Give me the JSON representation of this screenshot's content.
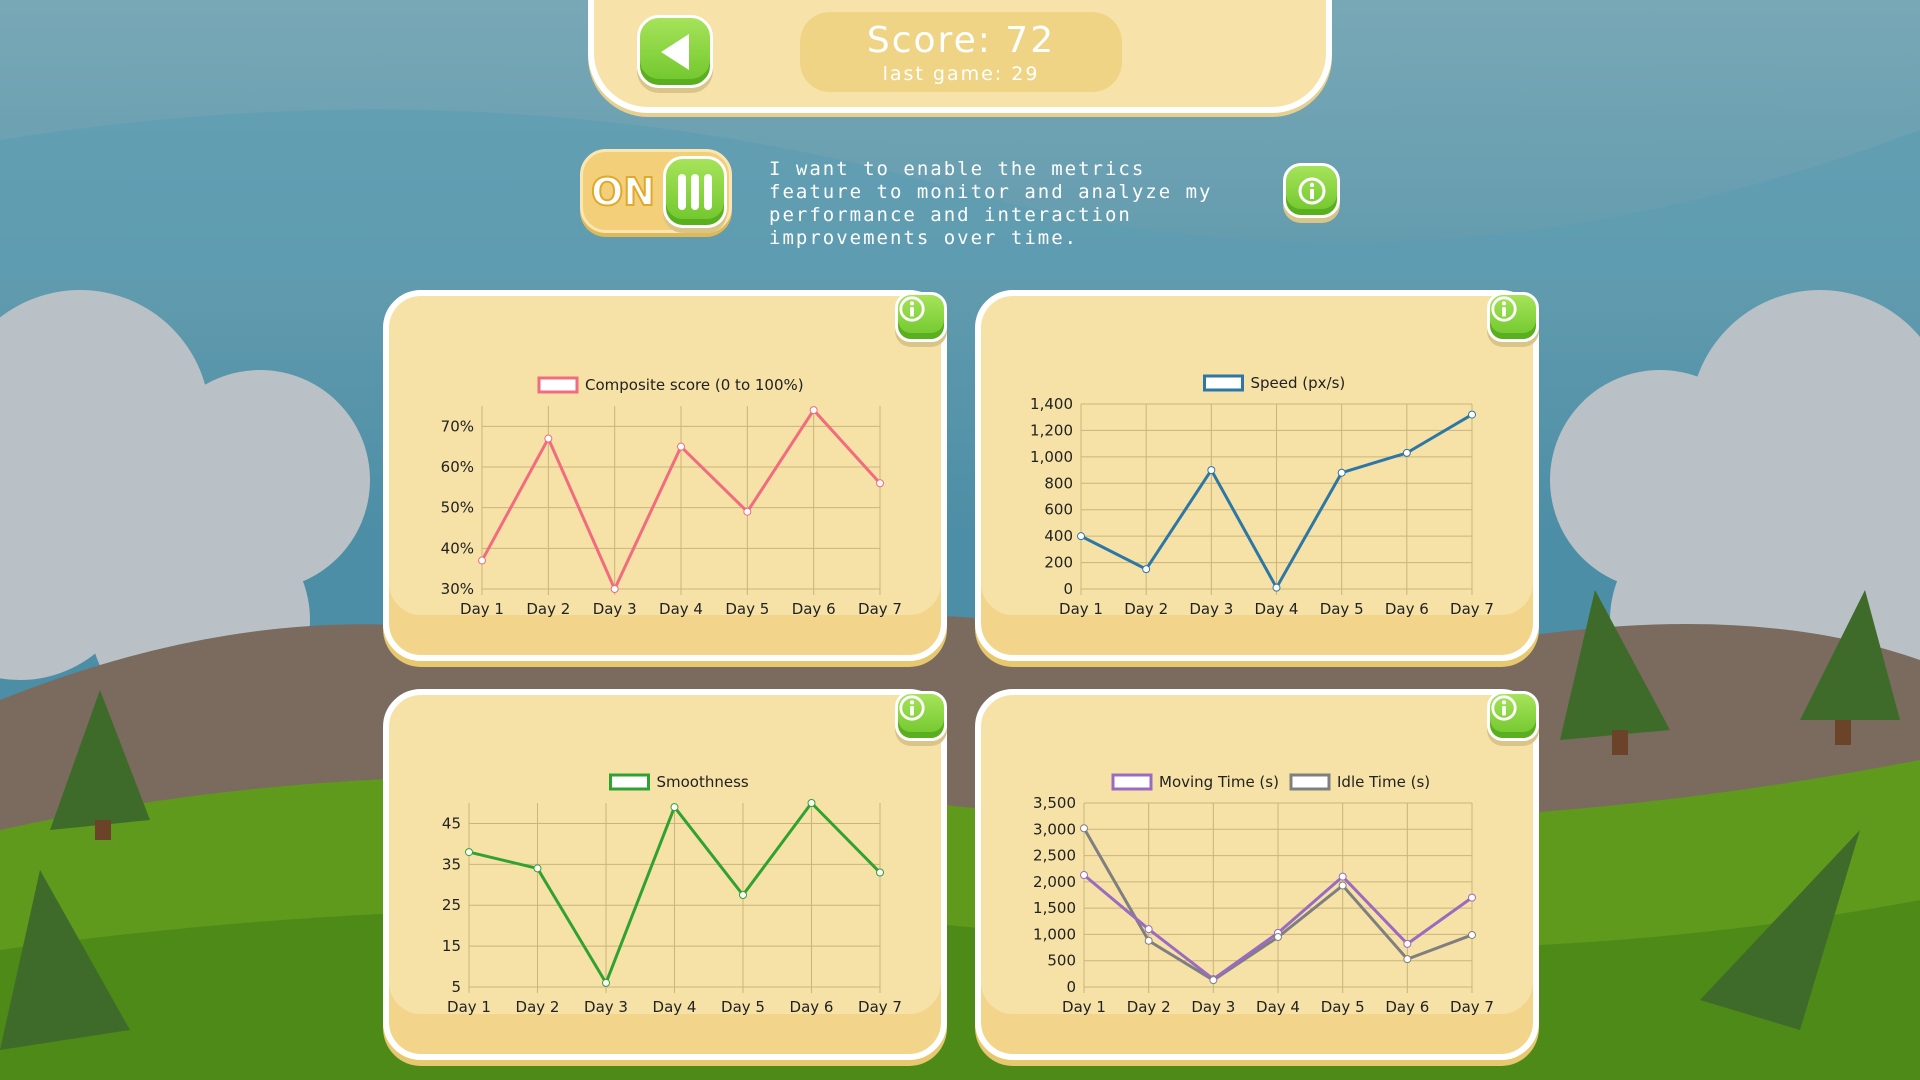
{
  "header": {
    "score_label": "Score: 72",
    "last_game_label": "last game: 29"
  },
  "toggle": {
    "state_label": "ON"
  },
  "description": "I want to enable the metrics feature to monitor and analyze my performance and interaction improvements over time.",
  "icons": {
    "back": "back-arrow-icon",
    "info": "info-icon",
    "toggle": "toggle-grip-icon"
  },
  "colors": {
    "composite": "#f26b7f",
    "speed": "#2d77a6",
    "smoothness": "#31a232",
    "moving": "#9a6bc0",
    "idle": "#7f7f7f"
  },
  "chart_data": [
    {
      "type": "line",
      "categories": [
        "Day 1",
        "Day 2",
        "Day 3",
        "Day 4",
        "Day 5",
        "Day 6",
        "Day 7"
      ],
      "series": [
        {
          "name": "Composite score (0 to 100%)",
          "color": "#f26b7f",
          "values": [
            37,
            67,
            30,
            65,
            49,
            74,
            56
          ]
        }
      ],
      "ylim": [
        30,
        75
      ],
      "yticks": [
        30,
        40,
        50,
        60,
        70
      ],
      "ytick_labels": [
        "30%",
        "40%",
        "50%",
        "60%",
        "70%"
      ],
      "grid": true,
      "legend": "top"
    },
    {
      "type": "line",
      "categories": [
        "Day 1",
        "Day 2",
        "Day 3",
        "Day 4",
        "Day 5",
        "Day 6",
        "Day 7"
      ],
      "series": [
        {
          "name": "Speed (px/s)",
          "color": "#2d77a6",
          "values": [
            400,
            150,
            900,
            10,
            880,
            1030,
            1320
          ]
        }
      ],
      "ylim": [
        0,
        1400
      ],
      "yticks": [
        0,
        200,
        400,
        600,
        800,
        1000,
        1200,
        1400
      ],
      "ytick_labels": [
        "0",
        "200",
        "400",
        "600",
        "800",
        "1,000",
        "1,200",
        "1,400"
      ],
      "grid": true,
      "legend": "top"
    },
    {
      "type": "line",
      "categories": [
        "Day 1",
        "Day 2",
        "Day 3",
        "Day 4",
        "Day 5",
        "Day 6",
        "Day 7"
      ],
      "series": [
        {
          "name": "Smoothness",
          "color": "#31a232",
          "values": [
            38,
            34,
            6,
            49,
            27.5,
            50,
            33
          ]
        }
      ],
      "ylim": [
        5,
        50
      ],
      "yticks": [
        5,
        15,
        25,
        35,
        45
      ],
      "ytick_labels": [
        "5",
        "15",
        "25",
        "35",
        "45"
      ],
      "grid": true,
      "legend": "top"
    },
    {
      "type": "line",
      "categories": [
        "Day 1",
        "Day 2",
        "Day 3",
        "Day 4",
        "Day 5",
        "Day 6",
        "Day 7"
      ],
      "series": [
        {
          "name": "Moving Time (s)",
          "color": "#9a6bc0",
          "values": [
            2130,
            1100,
            150,
            1030,
            2100,
            820,
            1700
          ]
        },
        {
          "name": "Idle Time (s)",
          "color": "#7f7f7f",
          "values": [
            3020,
            880,
            130,
            950,
            1930,
            530,
            990
          ]
        }
      ],
      "ylim": [
        0,
        3500
      ],
      "yticks": [
        0,
        500,
        1000,
        1500,
        2000,
        2500,
        3000,
        3500
      ],
      "ytick_labels": [
        "0",
        "500",
        "1,000",
        "1,500",
        "2,000",
        "2,500",
        "3,000",
        "3,500"
      ],
      "grid": true,
      "legend": "top"
    }
  ]
}
